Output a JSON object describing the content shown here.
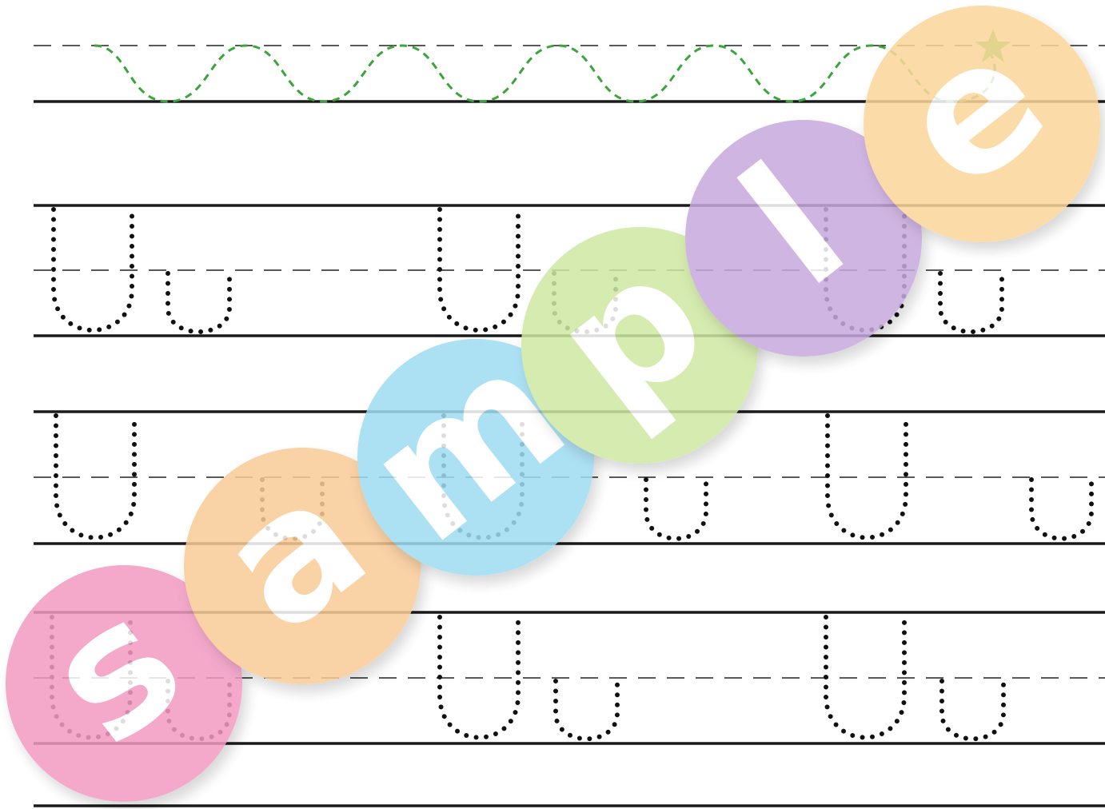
{
  "worksheet": {
    "letter_big": "U",
    "letter_small": "u",
    "trace_color": "#111111",
    "wave_color": "#3aa63a",
    "star_color": "#4ec34e"
  },
  "watermark": {
    "word": "sample",
    "letters": [
      {
        "char": "s",
        "color": "#f39bc3"
      },
      {
        "char": "a",
        "color": "#f9cb97"
      },
      {
        "char": "m",
        "color": "#9fdcf2"
      },
      {
        "char": "p",
        "color": "#cfe8a2"
      },
      {
        "char": "l",
        "color": "#c8a9dd"
      },
      {
        "char": "e",
        "color": "#fbd79a"
      }
    ]
  }
}
